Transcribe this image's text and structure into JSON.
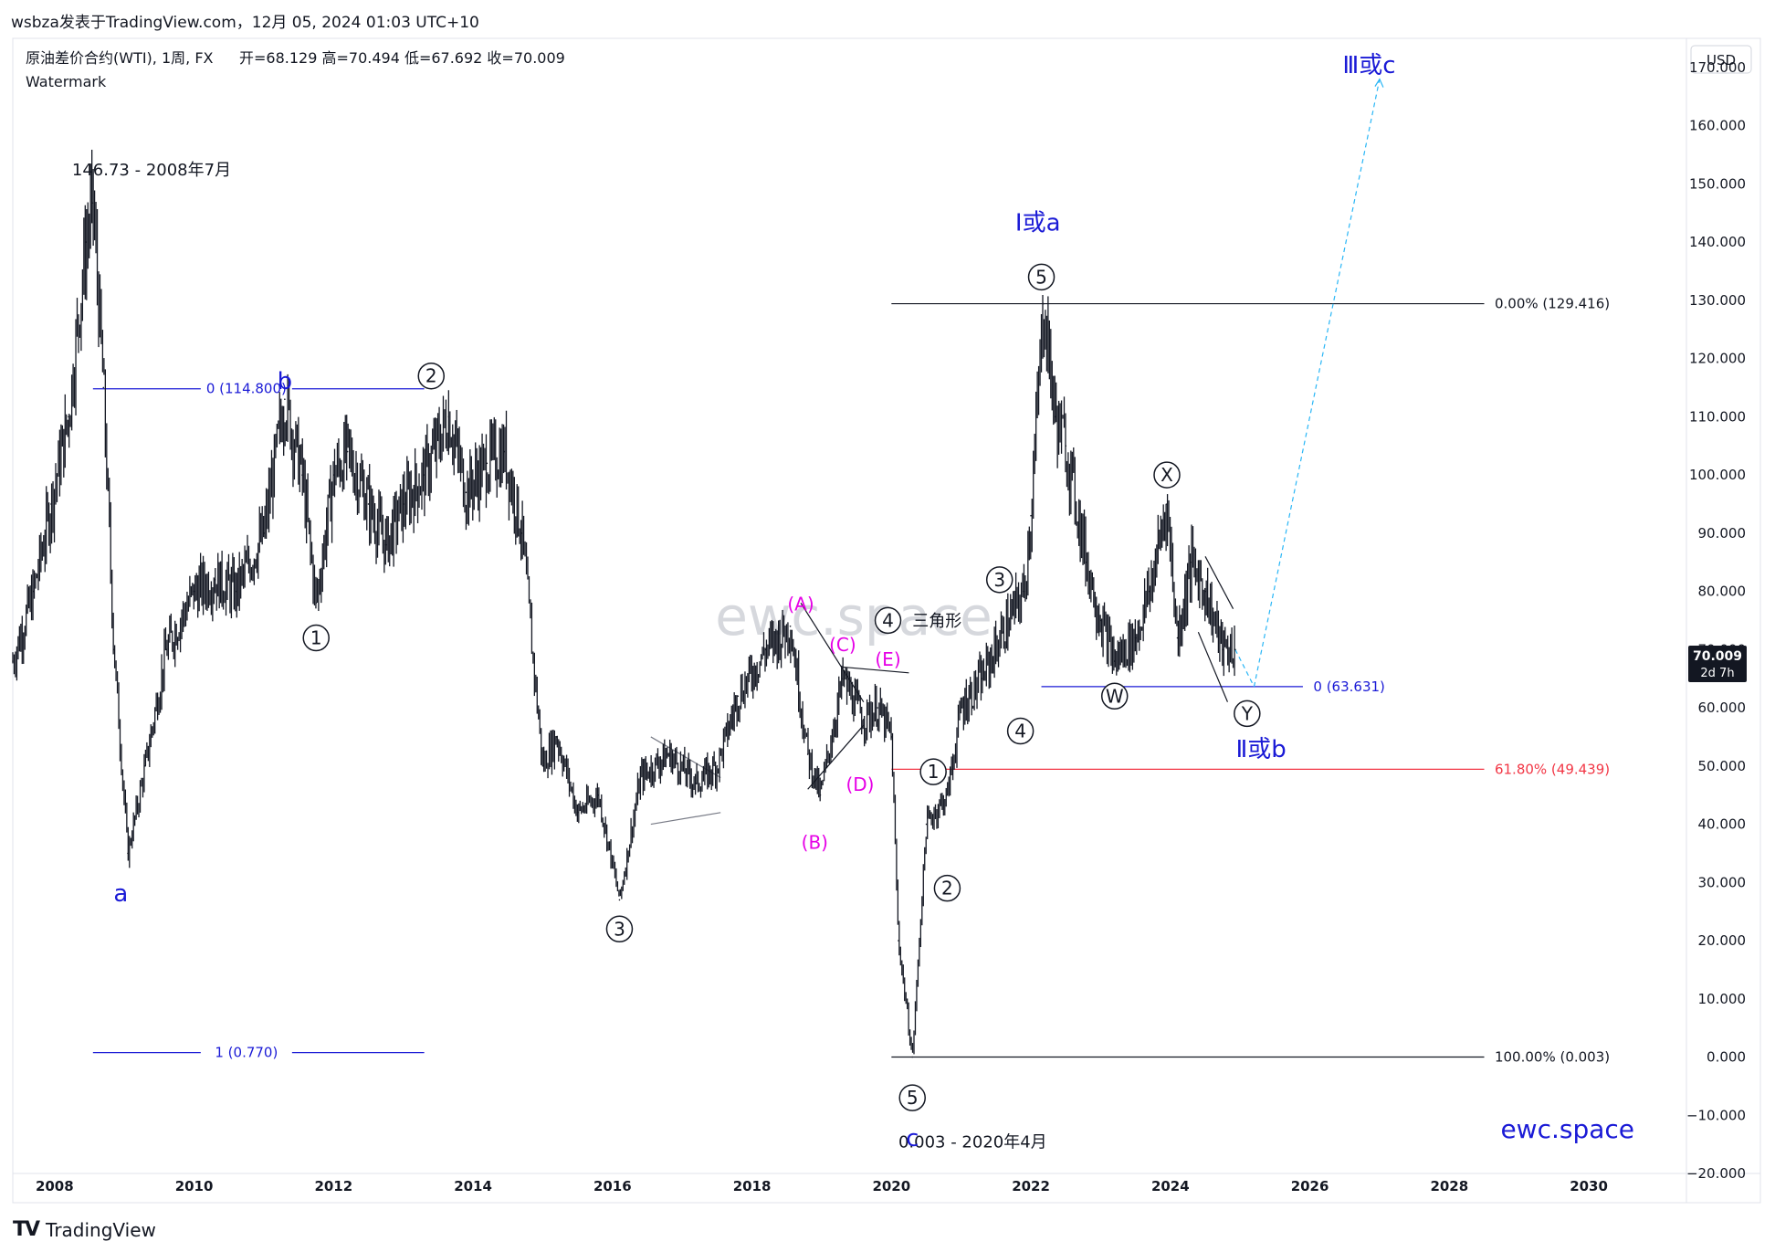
{
  "header": {
    "publisher_line": "wsbza发表于TradingView.com，12月 05, 2024 01:03 UTC+10"
  },
  "legend": {
    "symbol": "原油差价合约(WTI), 1周, FX",
    "ohlc": "开=68.129  高=70.494  低=67.692  收=70.009",
    "watermark_label": "Watermark"
  },
  "currency_button": "USD",
  "price_tag": {
    "price": "70.009",
    "countdown": "2d 7h"
  },
  "watermark_text": "ewc.space",
  "site_signature": "ewc.space",
  "footer": {
    "logo": "TV",
    "brand": "TradingView"
  },
  "chart_data": {
    "type": "line",
    "ylim": [
      -20,
      175
    ],
    "xlim": [
      2007.4,
      2031.4
    ],
    "x_ticks": [
      "2008",
      "2010",
      "2012",
      "2014",
      "2016",
      "2018",
      "2020",
      "2022",
      "2024",
      "2026",
      "2028",
      "2030"
    ],
    "y_ticks": [
      "170.000",
      "160.000",
      "150.000",
      "140.000",
      "130.000",
      "120.000",
      "110.000",
      "100.000",
      "90.000",
      "80.000",
      "70.000",
      "60.000",
      "50.000",
      "40.000",
      "30.000",
      "20.000",
      "10.000",
      "0.000",
      "−10.000",
      "−20.000"
    ],
    "series": [
      {
        "x": [
          2007.4,
          2007.7,
          2007.95,
          2008.2,
          2008.45,
          2008.55,
          2008.7,
          2008.85,
          2009.05,
          2009.3,
          2009.6,
          2010.0,
          2010.3,
          2010.6,
          2011.0,
          2011.3,
          2011.55,
          2011.75,
          2012.0,
          2012.2,
          2012.5,
          2012.75,
          2013.0,
          2013.3,
          2013.65,
          2013.9,
          2014.2,
          2014.45,
          2014.7,
          2015.0,
          2015.2,
          2015.5,
          2015.8,
          2016.1,
          2016.4,
          2016.8,
          2017.2,
          2017.5,
          2017.8,
          2018.2,
          2018.55,
          2018.8,
          2018.98,
          2019.3,
          2019.6,
          2019.8,
          2020.0,
          2020.1,
          2020.3,
          2020.5,
          2020.8,
          2021.0,
          2021.3,
          2021.6,
          2021.9,
          2022.0,
          2022.18,
          2022.35,
          2022.5,
          2022.8,
          2023.0,
          2023.2,
          2023.5,
          2023.7,
          2023.95,
          2024.1,
          2024.3,
          2024.5,
          2024.75,
          2024.93
        ],
        "values": [
          68,
          80,
          95,
          110,
          140,
          146.73,
          115,
          70,
          35,
          50,
          70,
          80,
          82,
          80,
          90,
          113,
          100,
          78,
          100,
          104,
          95,
          88,
          95,
          100,
          110,
          97,
          102,
          104,
          90,
          50,
          55,
          42,
          45,
          27,
          48,
          52,
          47,
          50,
          62,
          70,
          74,
          52,
          45,
          65,
          58,
          60,
          55,
          20,
          0.003,
          40,
          45,
          60,
          65,
          73,
          80,
          93,
          129.416,
          110,
          105,
          85,
          75,
          68,
          72,
          80,
          95,
          72,
          85,
          80,
          70,
          70.009
        ]
      }
    ],
    "fib_levels": [
      {
        "label": "0 (114.800)",
        "value": 114.8
      },
      {
        "label": "1 (0.770)",
        "value": 0.77
      },
      {
        "label": "0.00% (129.416)",
        "value": 129.416
      },
      {
        "label": "61.80% (49.439)",
        "value": 49.439
      },
      {
        "label": "100.00% (0.003)",
        "value": 0.003
      },
      {
        "label": "0 (63.631)",
        "value": 63.631
      }
    ],
    "annotations": [
      {
        "text": "146.73 - 2008年7月"
      },
      {
        "text": "0.003 - 2020年4月"
      },
      {
        "text": "Ⅰ或a"
      },
      {
        "text": "Ⅱ或b"
      },
      {
        "text": "Ⅲ或c"
      },
      {
        "text": "三角形"
      }
    ],
    "wave_labels": [
      {
        "text": "a"
      },
      {
        "text": "b"
      },
      {
        "text": "c"
      },
      {
        "text": "1"
      },
      {
        "text": "2"
      },
      {
        "text": "3"
      },
      {
        "text": "4"
      },
      {
        "text": "5"
      },
      {
        "text": "1"
      },
      {
        "text": "2"
      },
      {
        "text": "3"
      },
      {
        "text": "4"
      },
      {
        "text": "5"
      },
      {
        "text": "W"
      },
      {
        "text": "X"
      },
      {
        "text": "Y"
      },
      {
        "text": "(A)"
      },
      {
        "text": "(B)"
      },
      {
        "text": "(C)"
      },
      {
        "text": "(D)"
      },
      {
        "text": "(E)"
      }
    ],
    "projection": {
      "from": [
        2024.93,
        70.009
      ],
      "to": [
        2027.0,
        168
      ]
    },
    "colors": {
      "price": "#131722",
      "fib_blue": "#1a1ad6",
      "fib_black": "#131722",
      "fib_red": "#f23645",
      "magenta": "#e600e6",
      "projection": "#29b6f6",
      "axis_text": "#131722",
      "price_tag_bg": "#131722"
    }
  }
}
